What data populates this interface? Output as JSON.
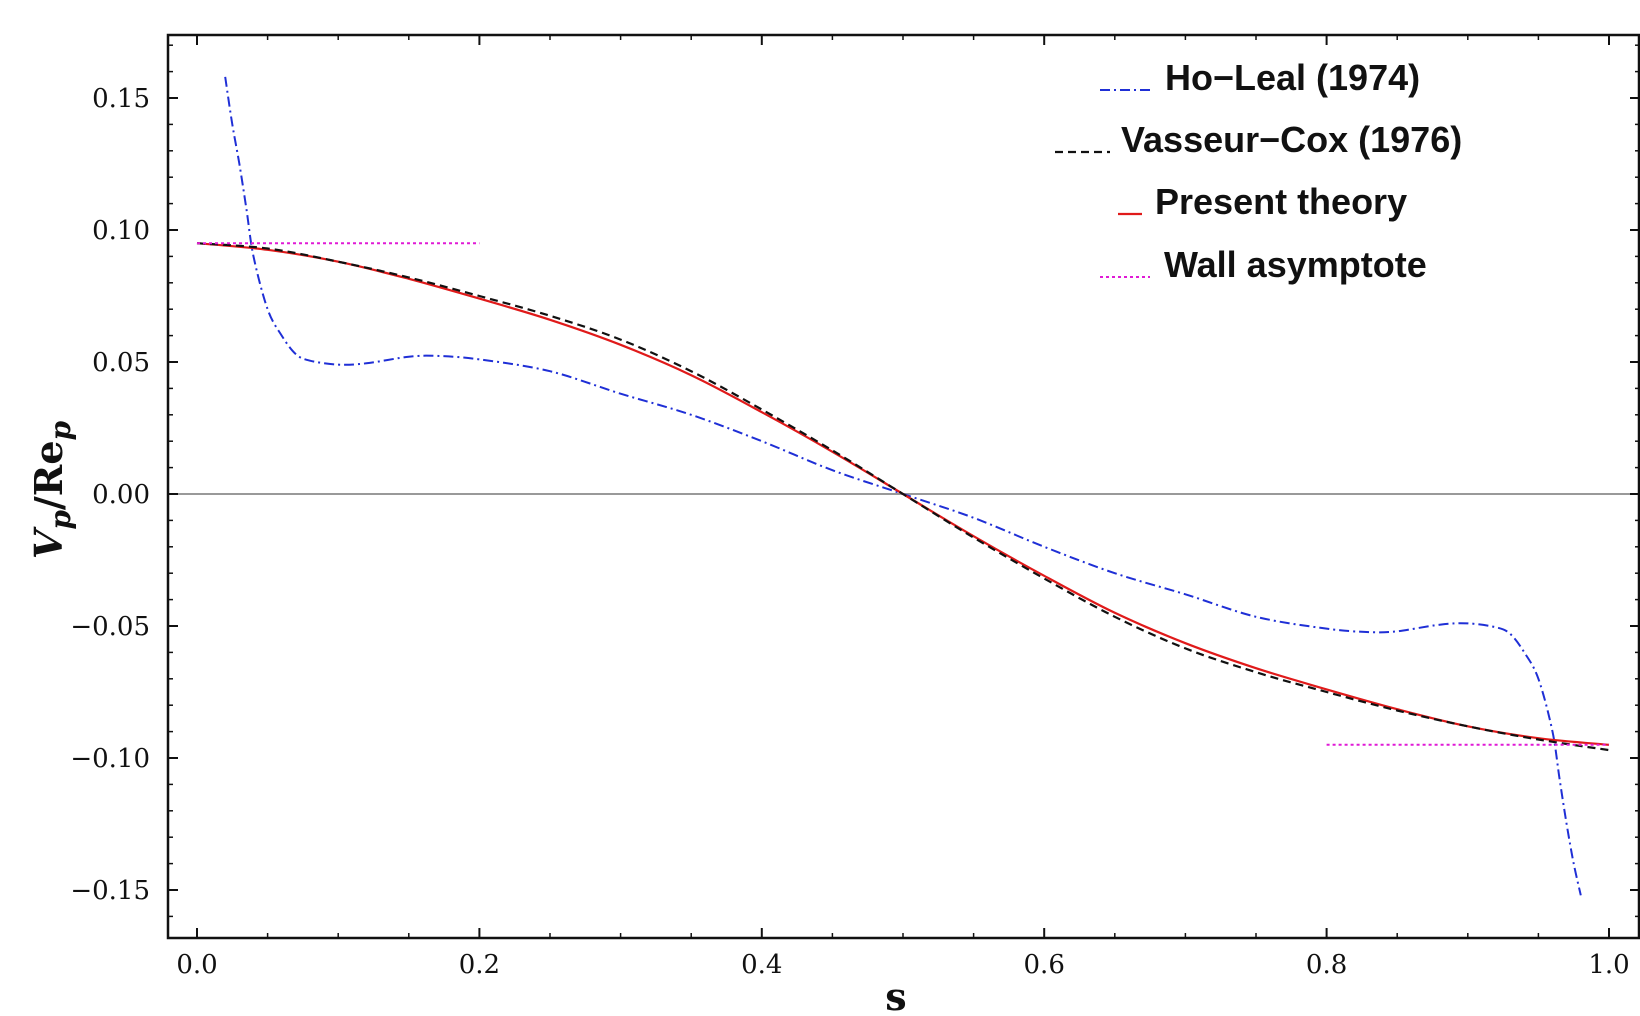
{
  "chart_data": {
    "type": "line",
    "xlabel": "s",
    "ylabel": {
      "main": "V",
      "sub1": "p",
      "mid": "/Re",
      "sub2": "p"
    },
    "xlim": [
      -0.04,
      1.03
    ],
    "ylim": [
      -0.169,
      0.175
    ],
    "xticks": [
      0.0,
      0.2,
      0.4,
      0.6,
      0.8,
      1.0
    ],
    "xtick_labels": [
      "0.0",
      "0.2",
      "0.4",
      "0.6",
      "0.8",
      "1.0"
    ],
    "yticks": [
      0.15,
      0.1,
      0.05,
      0.0,
      -0.05,
      -0.1,
      -0.15
    ],
    "ytick_labels": [
      "0.15",
      "0.10",
      "0.05",
      "0.00",
      "−0.05",
      "−0.10",
      "−0.15"
    ],
    "grid": false,
    "zero_line": true,
    "legend_position": "top-right",
    "series": [
      {
        "name": "Ho−Leal (1974)",
        "color": "#1f2fd6",
        "style": "dashdot",
        "x": [
          0.02,
          0.025,
          0.03,
          0.035,
          0.04,
          0.05,
          0.06,
          0.07,
          0.08,
          0.1,
          0.12,
          0.15,
          0.17,
          0.2,
          0.25,
          0.3,
          0.35,
          0.4,
          0.45,
          0.5,
          0.55,
          0.6,
          0.65,
          0.7,
          0.75,
          0.8,
          0.83,
          0.85,
          0.88,
          0.9,
          0.92,
          0.93,
          0.94,
          0.95,
          0.96,
          0.965,
          0.97,
          0.975,
          0.98
        ],
        "y": [
          0.158,
          0.14,
          0.125,
          0.108,
          0.09,
          0.07,
          0.06,
          0.053,
          0.0505,
          0.049,
          0.0495,
          0.052,
          0.0523,
          0.051,
          0.0465,
          0.038,
          0.03,
          0.02,
          0.009,
          0.0,
          -0.009,
          -0.02,
          -0.03,
          -0.038,
          -0.0465,
          -0.051,
          -0.0523,
          -0.052,
          -0.0495,
          -0.049,
          -0.0505,
          -0.053,
          -0.06,
          -0.07,
          -0.09,
          -0.108,
          -0.125,
          -0.14,
          -0.152
        ]
      },
      {
        "name": "Vasseur−Cox (1976)",
        "color": "#111111",
        "style": "dashed",
        "x": [
          0.0,
          0.05,
          0.1,
          0.15,
          0.2,
          0.25,
          0.3,
          0.35,
          0.4,
          0.45,
          0.5,
          0.55,
          0.6,
          0.65,
          0.7,
          0.75,
          0.8,
          0.85,
          0.9,
          0.95,
          1.0
        ],
        "y": [
          0.095,
          0.093,
          0.088,
          0.082,
          0.075,
          0.0675,
          0.0585,
          0.0465,
          0.032,
          0.0165,
          0.0,
          -0.0165,
          -0.032,
          -0.0465,
          -0.0585,
          -0.0675,
          -0.075,
          -0.082,
          -0.088,
          -0.093,
          -0.097
        ]
      },
      {
        "name": "Present theory",
        "color": "#e01a1a",
        "style": "solid",
        "x": [
          0.0,
          0.05,
          0.1,
          0.15,
          0.2,
          0.25,
          0.3,
          0.35,
          0.4,
          0.45,
          0.5,
          0.55,
          0.6,
          0.65,
          0.7,
          0.75,
          0.8,
          0.85,
          0.9,
          0.95,
          1.0
        ],
        "y": [
          0.095,
          0.0925,
          0.088,
          0.0815,
          0.074,
          0.066,
          0.0565,
          0.045,
          0.031,
          0.016,
          0.0,
          -0.016,
          -0.031,
          -0.045,
          -0.0565,
          -0.066,
          -0.074,
          -0.0815,
          -0.088,
          -0.0925,
          -0.095
        ]
      },
      {
        "name": "Wall asymptote",
        "color": "#e01ad6",
        "style": "dotted",
        "segments": [
          {
            "x": [
              0.0,
              0.2
            ],
            "y": [
              0.095,
              0.095
            ]
          },
          {
            "x": [
              0.8,
              1.0
            ],
            "y": [
              -0.095,
              -0.095
            ]
          }
        ]
      }
    ]
  }
}
